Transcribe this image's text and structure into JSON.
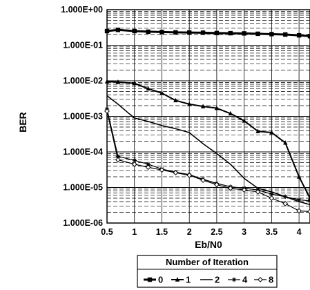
{
  "chart_data": {
    "type": "line",
    "title": "",
    "xlabel": "Eb/N0",
    "ylabel": "BER",
    "y_scale": "log",
    "xlim": [
      0.5,
      4.2
    ],
    "ylim": [
      1e-06,
      1
    ],
    "x_ticks": [
      0.5,
      1,
      1.5,
      2,
      2.5,
      3,
      3.5,
      4
    ],
    "x_tick_labels": [
      "0.5",
      "1",
      "1.5",
      "2",
      "2.5",
      "3",
      "3.5",
      "4"
    ],
    "y_ticks": [
      1,
      0.1,
      0.01,
      0.001,
      0.0001,
      1e-05,
      1e-06
    ],
    "y_tick_labels": [
      "1.000E+00",
      "1.000E-01",
      "1.000E-02",
      "1.000E-03",
      "1.000E-04",
      "1.000E-05",
      "1.000E-06"
    ],
    "grid": true,
    "legend_title": "Number of Iteration",
    "legend_position": "bottom",
    "series": [
      {
        "name": "0",
        "marker": "square",
        "x": [
          0.5,
          0.7,
          1.0,
          1.25,
          1.5,
          1.75,
          2.0,
          2.25,
          2.5,
          2.75,
          3.0,
          3.25,
          3.5,
          3.75,
          4.0,
          4.2
        ],
        "y": [
          0.25,
          0.27,
          0.25,
          0.24,
          0.235,
          0.23,
          0.228,
          0.225,
          0.22,
          0.218,
          0.215,
          0.21,
          0.205,
          0.2,
          0.19,
          0.18
        ]
      },
      {
        "name": "1",
        "marker": "triangle",
        "x": [
          0.5,
          0.7,
          1.0,
          1.25,
          1.5,
          1.75,
          2.0,
          2.25,
          2.5,
          2.75,
          3.0,
          3.25,
          3.5,
          3.75,
          4.0,
          4.2
        ],
        "y": [
          0.0095,
          0.0092,
          0.0085,
          0.006,
          0.0045,
          0.0028,
          0.0022,
          0.0019,
          0.0017,
          0.0012,
          0.00075,
          0.00038,
          0.00035,
          0.00018,
          2e-05,
          5e-06
        ]
      },
      {
        "name": "2",
        "marker": "none",
        "x": [
          0.5,
          0.7,
          0.9,
          1.0,
          1.25,
          1.5,
          1.75,
          2.0,
          2.25,
          2.5,
          2.75,
          3.0,
          3.25,
          3.5,
          3.75,
          4.0,
          4.2
        ],
        "y": [
          0.0038,
          0.0022,
          0.0012,
          0.0009,
          0.00072,
          0.00055,
          0.00045,
          0.00035,
          0.00017,
          9e-05,
          4.5e-05,
          1.8e-05,
          9.5e-06,
          7.5e-06,
          5.5e-06,
          4e-06,
          3.3e-06
        ]
      },
      {
        "name": "4",
        "marker": "star",
        "x": [
          0.5,
          0.7,
          1.0,
          1.25,
          1.5,
          1.75,
          2.0,
          2.25,
          2.5,
          2.75,
          3.0,
          3.25,
          3.5,
          3.75,
          4.0,
          4.2
        ],
        "y": [
          0.0016,
          7.5e-05,
          5.8e-05,
          4.5e-05,
          3.3e-05,
          2.7e-05,
          2.3e-05,
          1.7e-05,
          1.3e-05,
          1.05e-05,
          9.5e-06,
          8.5e-06,
          6.5e-06,
          5.5e-06,
          4.5e-06,
          4.2e-06
        ]
      },
      {
        "name": "8",
        "marker": "diamond",
        "x": [
          0.5,
          0.7,
          1.0,
          1.25,
          1.5,
          1.75,
          2.0,
          2.25,
          2.5,
          2.75,
          3.0,
          3.25,
          3.5,
          3.75,
          4.0,
          4.2
        ],
        "y": [
          0.0014,
          6e-05,
          4.5e-05,
          3.7e-05,
          3.1e-05,
          2.6e-05,
          2.2e-05,
          1.6e-05,
          1.2e-05,
          9.5e-06,
          8.5e-06,
          7.5e-06,
          5e-06,
          3.5e-06,
          2.2e-06,
          2.1e-06
        ]
      }
    ]
  }
}
